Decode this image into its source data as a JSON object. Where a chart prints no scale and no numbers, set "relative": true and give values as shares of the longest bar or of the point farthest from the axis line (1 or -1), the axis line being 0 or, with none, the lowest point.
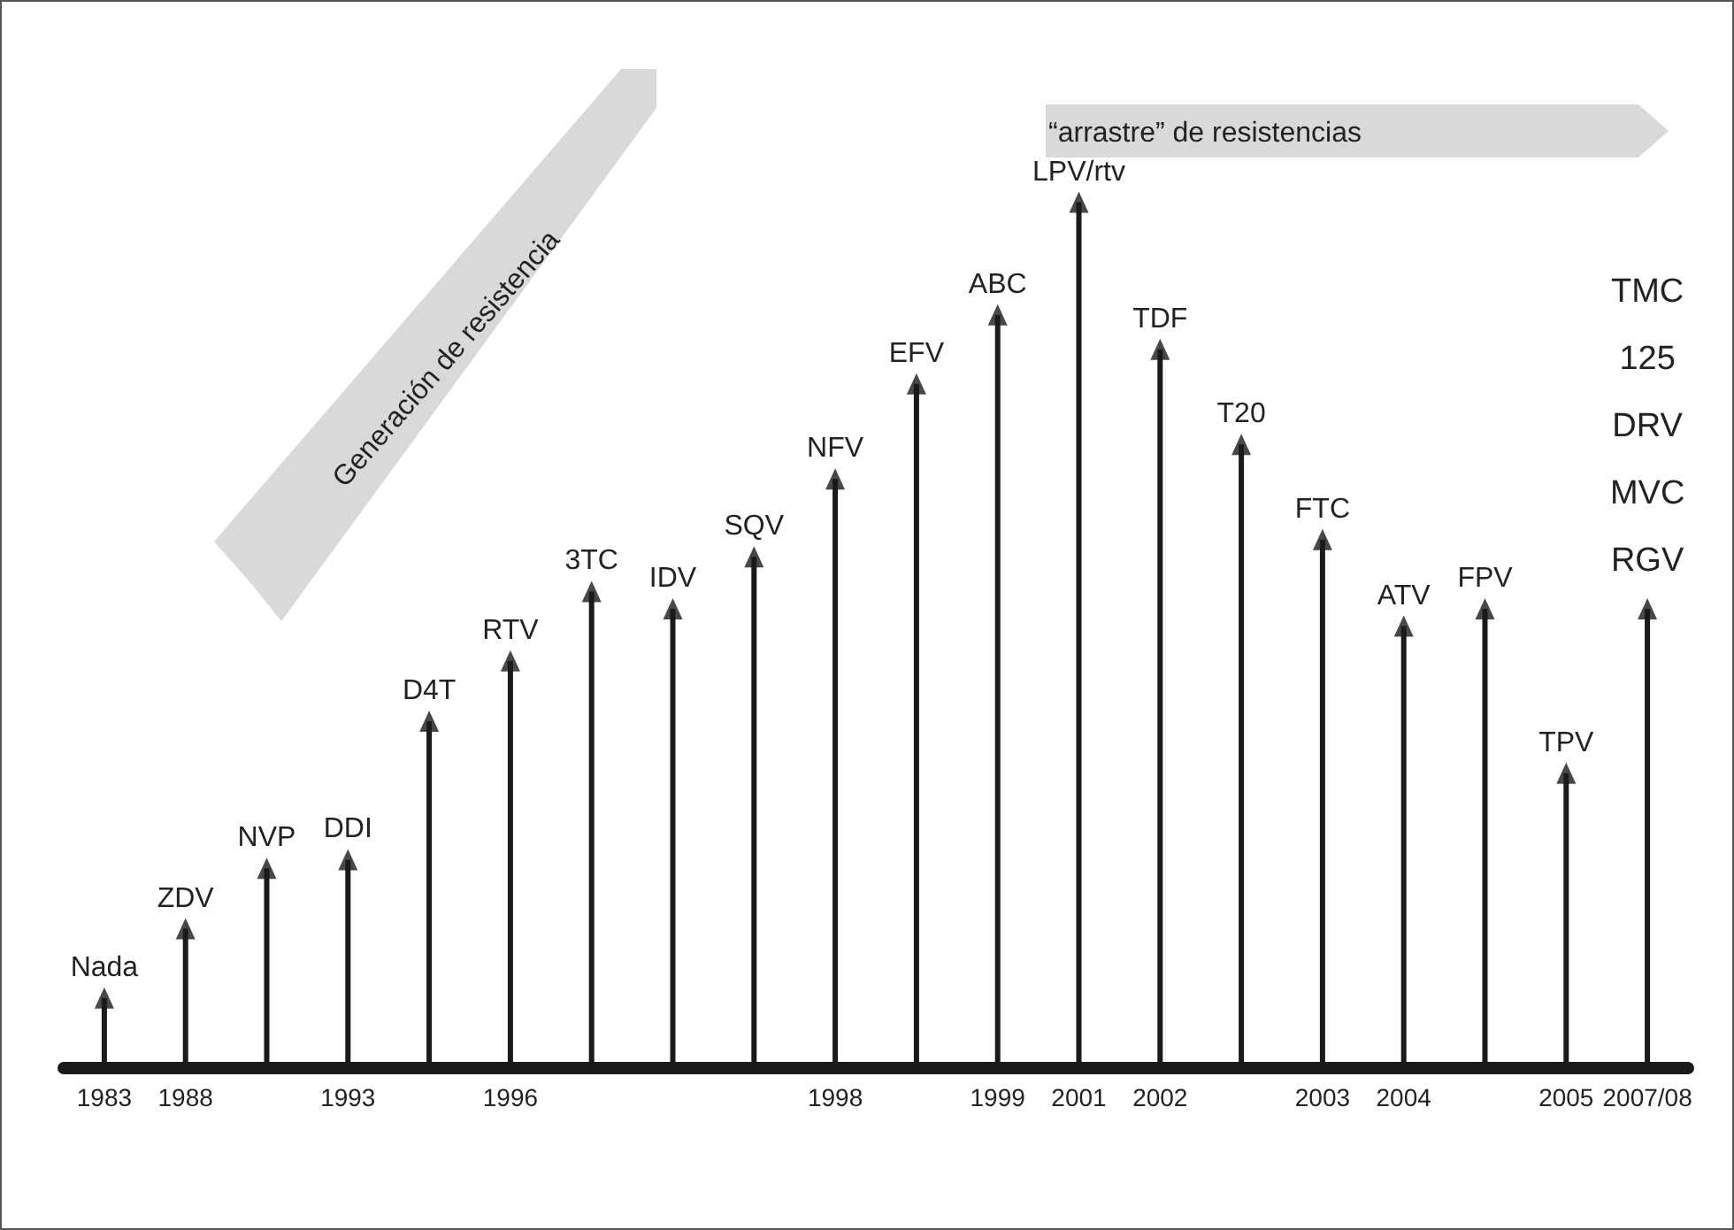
{
  "chart_data": {
    "type": "bar",
    "relative": true,
    "marker": "triangle",
    "color": "#1a1a1a",
    "categories": [
      "1983",
      "1988",
      null,
      "1993",
      null,
      "1996",
      null,
      null,
      null,
      "1998",
      null,
      "1999",
      "2001",
      "2002",
      null,
      "2003",
      "2004",
      null,
      "2005",
      "2007/08"
    ],
    "values": [
      0.08,
      0.16,
      0.23,
      0.24,
      0.4,
      0.47,
      0.55,
      0.53,
      0.59,
      0.68,
      0.79,
      0.87,
      1,
      0.83,
      0.72,
      0.61,
      0.51,
      0.53,
      0.34,
      0.53
    ],
    "annotations": [
      "Generación de resistencia",
      "“arrastre” de resistencias",
      {
        "text": "Nada",
        "x": "1983",
        "y": 0.08
      },
      {
        "text": "ZDV",
        "x": "1988",
        "y": 0.16
      },
      {
        "text": "NVP",
        "y": 0.23
      },
      {
        "text": "DDI",
        "x": "1993",
        "y": 0.24
      },
      {
        "text": "D4T",
        "y": 0.4
      },
      {
        "text": "RTV",
        "x": "1996",
        "y": 0.47
      },
      {
        "text": "3TC",
        "y": 0.55
      },
      {
        "text": "IDV",
        "y": 0.53
      },
      {
        "text": "SQV",
        "y": 0.59
      },
      {
        "text": "NFV",
        "x": "1998",
        "y": 0.68
      },
      {
        "text": "EFV",
        "y": 0.79
      },
      {
        "text": "ABC",
        "x": "1999",
        "y": 0.87
      },
      {
        "text": "LPV/rtv",
        "x": "2001",
        "y": 1
      },
      {
        "text": "TDF",
        "x": "2002",
        "y": 0.83
      },
      {
        "text": "T20",
        "y": 0.72
      },
      {
        "text": "FTC",
        "x": "2003",
        "y": 0.61
      },
      {
        "text": "ATV",
        "x": "2004",
        "y": 0.51
      },
      {
        "text": "FPV",
        "y": 0.53
      },
      {
        "text": "TPV",
        "x": "2005",
        "y": 0.34
      },
      {
        "text": "TMC 125 DRV MVC RGV",
        "x": "2007/08",
        "y": 0.53
      }
    ]
  }
}
